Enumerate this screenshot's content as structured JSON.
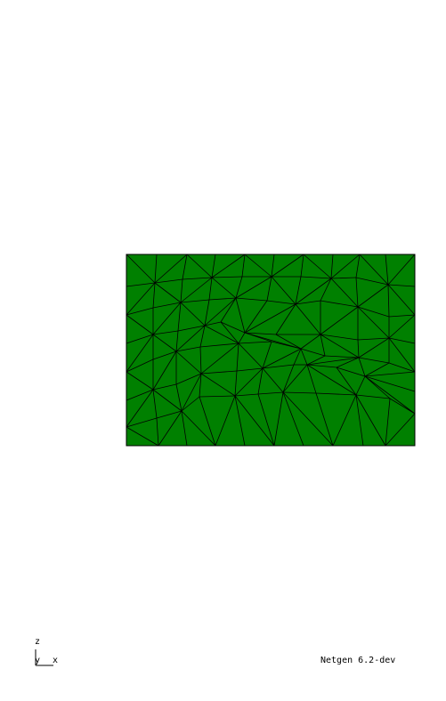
{
  "viewer": {
    "background_color": "#ffffff",
    "version": "Netgen 6.2-dev"
  },
  "mesh": {
    "fill_color": "#008000",
    "edge_color": "#000000"
  },
  "axes": {
    "z_label": "z",
    "y_label": "y",
    "x_label": "x"
  }
}
